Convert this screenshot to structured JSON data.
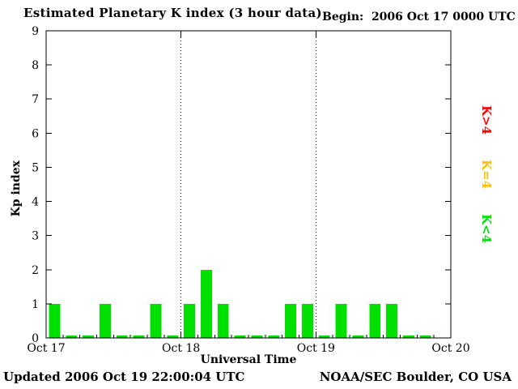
{
  "header": {
    "title": "Estimated Planetary K index (3 hour data)",
    "begin": "Begin:  2006 Oct 17 0000 UTC"
  },
  "footer": {
    "updated": "Updated 2006 Oct 19 22:00:04 UTC",
    "attribution": "NOAA/SEC Boulder, CO USA"
  },
  "legend": [
    {
      "label": "K>4",
      "color": "#ff0000",
      "condition": "gt"
    },
    {
      "label": "K=4",
      "color": "#ffc000",
      "condition": "eq"
    },
    {
      "label": "K<4",
      "color": "#00e000",
      "condition": "lt"
    }
  ],
  "chart_data": {
    "type": "bar",
    "title": "Estimated Planetary K index (3 hour data)",
    "xlabel": "Universal Time",
    "ylabel": "Kp index",
    "ylim": [
      0,
      9
    ],
    "y_ticks": [
      0,
      1,
      2,
      3,
      4,
      5,
      6,
      7,
      8,
      9
    ],
    "x_tick_labels": [
      "Oct 17",
      "Oct 18",
      "Oct 19",
      "Oct 20"
    ],
    "hours_per_bar": 3,
    "threshold": 4,
    "grid": "dotted vertical lines at day boundaries",
    "legend_position": "right, rotated",
    "kp_values": [
      1,
      0,
      0,
      1,
      0,
      0,
      1,
      0,
      1,
      2,
      1,
      0,
      0,
      0,
      1,
      1,
      0,
      1,
      0,
      1,
      1,
      0,
      0
    ]
  }
}
